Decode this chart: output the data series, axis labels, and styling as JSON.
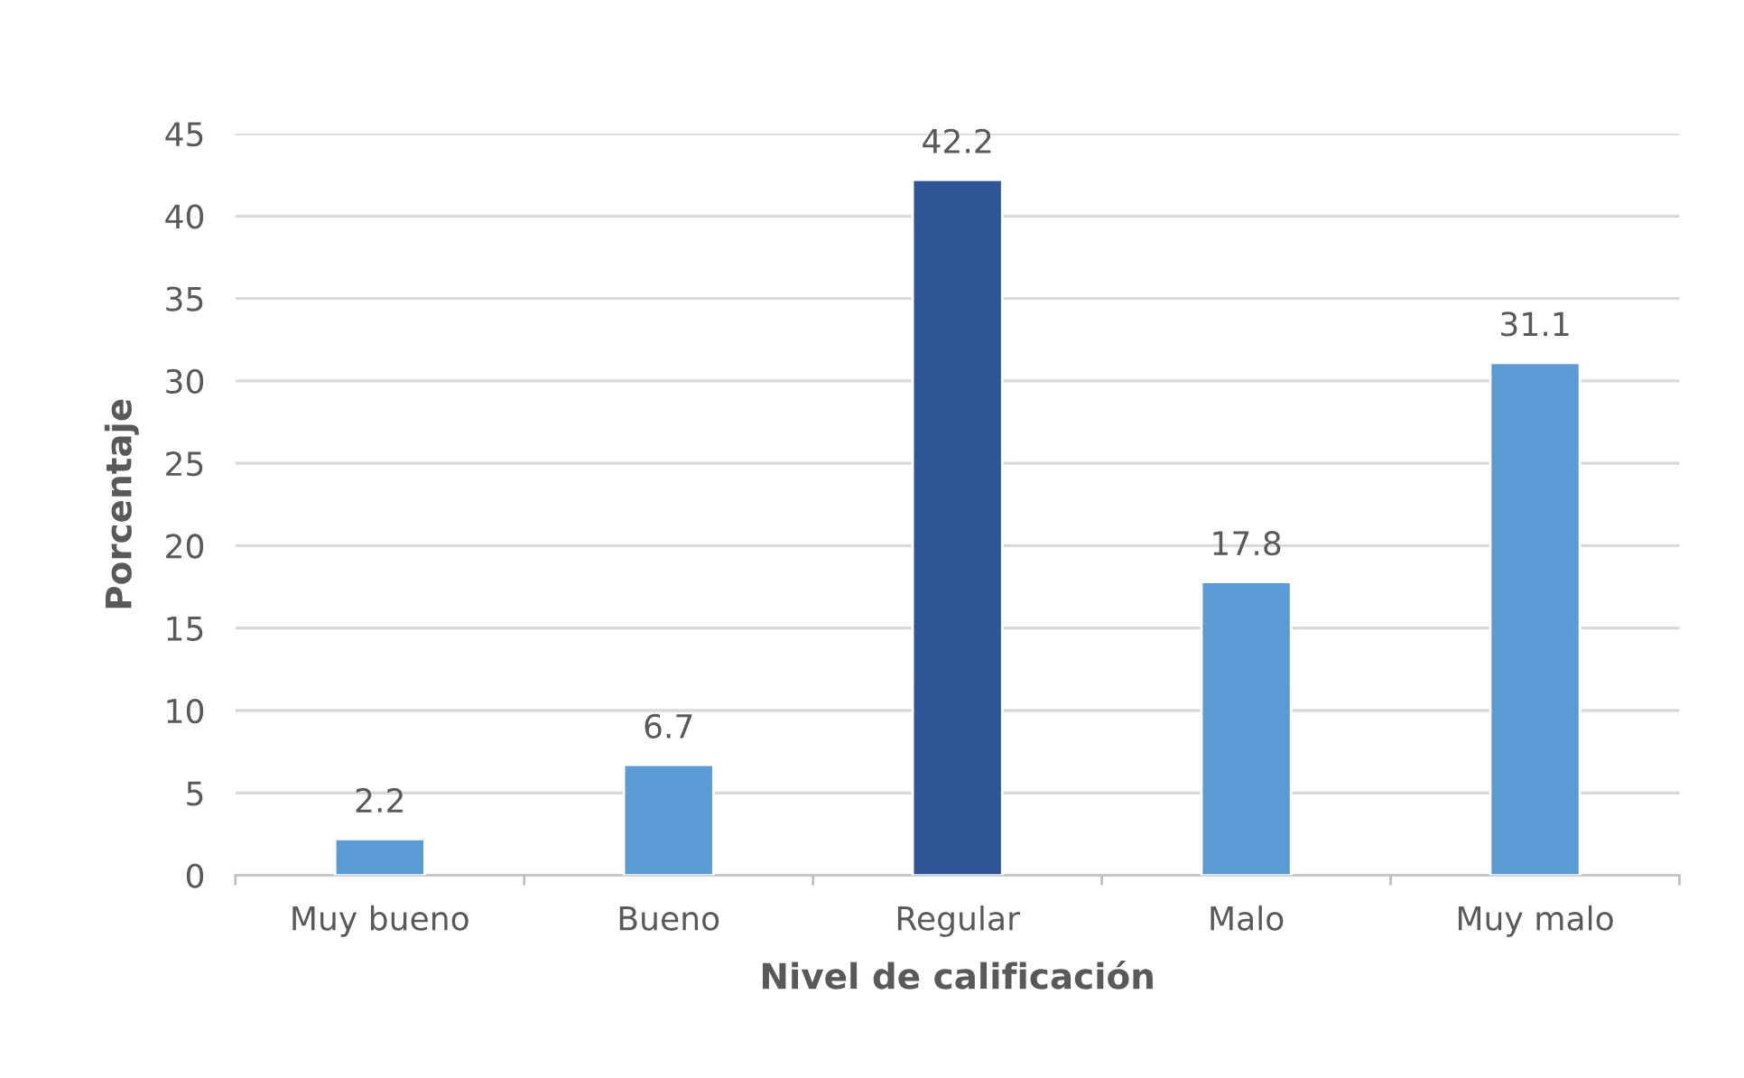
{
  "chart_data": {
    "type": "bar",
    "categories": [
      "Muy bueno",
      "Bueno",
      "Regular",
      "Malo",
      "Muy malo"
    ],
    "values": [
      2.2,
      6.7,
      42.2,
      17.8,
      31.1
    ],
    "colors": [
      "#5b9bd5",
      "#5b9bd5",
      "#2f5597",
      "#5b9bd5",
      "#5b9bd5"
    ],
    "xlabel": "Nivel de calificación",
    "ylabel": "Porcentaje",
    "ylim": [
      0,
      45
    ],
    "yticks": [
      0,
      5,
      10,
      15,
      20,
      25,
      30,
      35,
      40,
      45
    ],
    "grid": "y",
    "data_labels": true
  }
}
